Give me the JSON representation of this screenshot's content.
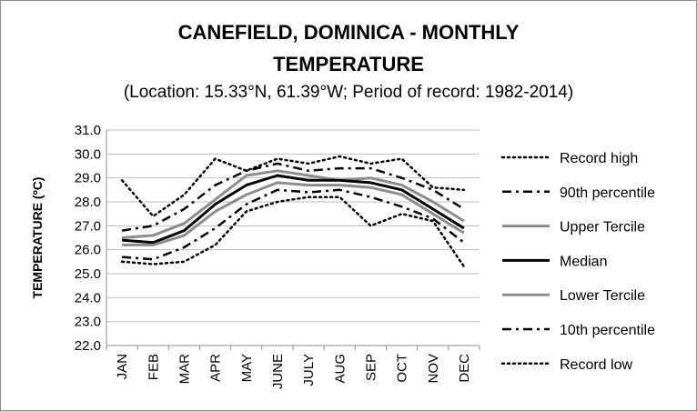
{
  "chart_data": {
    "type": "line",
    "title_line1": "CANEFIELD, DOMINICA - MONTHLY",
    "title_line2": "TEMPERATURE",
    "subtitle": "(Location: 15.33°N, 61.39°W; Period of record: 1982-2014)",
    "ylabel": "TEMPERATURE (ºC)",
    "xlabel": "",
    "categories": [
      "JAN",
      "FEB",
      "MAR",
      "APR",
      "MAY",
      "JUNE",
      "JULY",
      "AUG",
      "SEP",
      "OCT",
      "NOV",
      "DEC"
    ],
    "ylim": [
      22.0,
      31.0
    ],
    "yticks": [
      "22.0",
      "23.0",
      "24.0",
      "25.0",
      "26.0",
      "27.0",
      "28.0",
      "29.0",
      "30.0",
      "31.0"
    ],
    "grid": true,
    "legend_position": "right",
    "series": [
      {
        "name": "Record high",
        "style": "dotted",
        "color": "#000000",
        "values": [
          28.9,
          27.4,
          28.3,
          29.8,
          29.3,
          29.8,
          29.6,
          29.9,
          29.6,
          29.8,
          28.6,
          28.5
        ]
      },
      {
        "name": "90th percentile",
        "style": "dashdot",
        "color": "#000000",
        "values": [
          26.8,
          27.0,
          27.7,
          28.7,
          29.3,
          29.6,
          29.3,
          29.4,
          29.4,
          29.0,
          28.5,
          27.7
        ]
      },
      {
        "name": "Upper Tercile",
        "style": "solid",
        "color": "#8c8c8c",
        "values": [
          26.5,
          26.6,
          27.1,
          28.1,
          29.1,
          29.3,
          29.1,
          28.9,
          29.0,
          28.7,
          28.0,
          27.2
        ]
      },
      {
        "name": "Median",
        "style": "solid",
        "color": "#000000",
        "values": [
          26.4,
          26.3,
          26.8,
          27.9,
          28.7,
          29.1,
          28.9,
          28.9,
          28.8,
          28.5,
          27.7,
          26.9
        ]
      },
      {
        "name": "Lower Tercile",
        "style": "solid",
        "color": "#8c8c8c",
        "values": [
          26.2,
          26.2,
          26.6,
          27.6,
          28.3,
          28.8,
          28.7,
          28.7,
          28.6,
          28.3,
          27.5,
          26.7
        ]
      },
      {
        "name": "10th percentile",
        "style": "dashdot",
        "color": "#000000",
        "values": [
          25.7,
          25.6,
          26.1,
          26.9,
          27.9,
          28.5,
          28.4,
          28.5,
          28.2,
          27.8,
          27.3,
          26.3
        ]
      },
      {
        "name": "Record low",
        "style": "dotted",
        "color": "#000000",
        "values": [
          25.5,
          25.4,
          25.5,
          26.2,
          27.6,
          28.0,
          28.2,
          28.2,
          27.0,
          27.5,
          27.2,
          25.3
        ]
      }
    ]
  }
}
